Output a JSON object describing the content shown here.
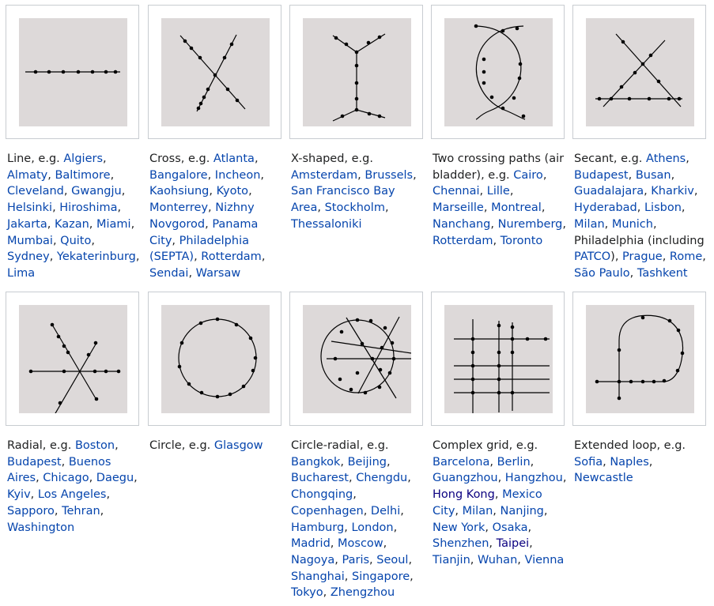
{
  "items": [
    {
      "label": "Line",
      "connector": ", e.g. ",
      "cities": [
        {
          "t": "Algiers"
        },
        {
          "t": "Almaty"
        },
        {
          "t": "Baltimore"
        },
        {
          "t": "Cleveland"
        },
        {
          "t": "Gwangju"
        },
        {
          "t": "Helsinki"
        },
        {
          "t": "Hiroshima"
        },
        {
          "t": "Jakarta"
        },
        {
          "t": "Kazan"
        },
        {
          "t": "Miami"
        },
        {
          "t": "Mumbai"
        },
        {
          "t": "Quito"
        },
        {
          "t": "Sydney"
        },
        {
          "t": "Yekaterinburg"
        },
        {
          "t": "Lima"
        }
      ]
    },
    {
      "label": "Cross",
      "connector": ", e.g. ",
      "cities": [
        {
          "t": "Atlanta"
        },
        {
          "t": "Bangalore"
        },
        {
          "t": "Incheon"
        },
        {
          "t": "Kaohsiung"
        },
        {
          "t": "Kyoto"
        },
        {
          "t": "Monterrey"
        },
        {
          "t": "Nizhny Novgorod"
        },
        {
          "t": "Panama City"
        },
        {
          "t": "Philadelphia (SEPTA)"
        },
        {
          "t": "Rotterdam"
        },
        {
          "t": "Sendai"
        },
        {
          "t": "Warsaw"
        }
      ]
    },
    {
      "label": "X-shaped",
      "connector": ", e.g. ",
      "cities": [
        {
          "t": "Amsterdam"
        },
        {
          "t": "Brussels"
        },
        {
          "t": "San Francisco Bay Area"
        },
        {
          "t": "Stockholm"
        },
        {
          "t": "Thessaloniki"
        }
      ]
    },
    {
      "label": "Two crossing paths (air bladder)",
      "connector": ", e.g. ",
      "cities": [
        {
          "t": "Cairo"
        },
        {
          "t": "Chennai"
        },
        {
          "t": "Lille"
        },
        {
          "t": "Marseille"
        },
        {
          "t": "Montreal"
        },
        {
          "t": "Nanchang"
        },
        {
          "t": "Nuremberg"
        },
        {
          "t": "Rotterdam"
        },
        {
          "t": "Toronto"
        }
      ]
    },
    {
      "label": "Secant",
      "connector": ", e.g. ",
      "cities": [
        {
          "t": "Athens"
        },
        {
          "t": "Budapest"
        },
        {
          "t": "Busan"
        },
        {
          "t": "Guadalajara"
        },
        {
          "t": "Kharkiv"
        },
        {
          "t": "Hyderabad"
        },
        {
          "t": "Lisbon"
        },
        {
          "t": "Milan"
        },
        {
          "t": "Munich"
        },
        {
          "t": "Philadelphia",
          "plain": true,
          "suffix": " (including "
        },
        {
          "t": "PATCO",
          "suffix": "), "
        },
        {
          "t": "Prague"
        },
        {
          "t": "Rome"
        },
        {
          "t": "São Paulo"
        },
        {
          "t": "Tashkent"
        }
      ]
    },
    {
      "label": "Radial",
      "connector": ", e.g. ",
      "cities": [
        {
          "t": "Boston"
        },
        {
          "t": "Budapest"
        },
        {
          "t": "Buenos Aires"
        },
        {
          "t": "Chicago"
        },
        {
          "t": "Daegu"
        },
        {
          "t": "Kyiv"
        },
        {
          "t": "Los Angeles"
        },
        {
          "t": "Sapporo"
        },
        {
          "t": "Tehran"
        },
        {
          "t": "Washington"
        }
      ]
    },
    {
      "label": "Circle",
      "connector": ", e.g. ",
      "cities": [
        {
          "t": "Glasgow"
        }
      ]
    },
    {
      "label": "Circle-radial",
      "connector": ", e.g. ",
      "cities": [
        {
          "t": "Bangkok"
        },
        {
          "t": "Beijing"
        },
        {
          "t": "Bucharest"
        },
        {
          "t": "Chengdu"
        },
        {
          "t": "Chongqing"
        },
        {
          "t": "Copenhagen"
        },
        {
          "t": "Delhi"
        },
        {
          "t": "Hamburg"
        },
        {
          "t": "London"
        },
        {
          "t": "Madrid"
        },
        {
          "t": "Moscow"
        },
        {
          "t": "Nagoya"
        },
        {
          "t": "Paris"
        },
        {
          "t": "Seoul"
        },
        {
          "t": "Shanghai"
        },
        {
          "t": "Singapore"
        },
        {
          "t": "Tokyo"
        },
        {
          "t": "Zhengzhou"
        }
      ]
    },
    {
      "label": "Complex grid",
      "connector": ", e.g. ",
      "cities": [
        {
          "t": "Barcelona"
        },
        {
          "t": "Berlin"
        },
        {
          "t": "Guangzhou"
        },
        {
          "t": "Hangzhou"
        },
        {
          "t": "Hong Kong",
          "visited": true
        },
        {
          "t": "Mexico City"
        },
        {
          "t": "Milan"
        },
        {
          "t": "Nanjing"
        },
        {
          "t": "New York"
        },
        {
          "t": "Osaka"
        },
        {
          "t": "Shenzhen"
        },
        {
          "t": "Taipei",
          "visited": true
        },
        {
          "t": "Tianjin"
        },
        {
          "t": "Wuhan"
        },
        {
          "t": "Vienna"
        }
      ]
    },
    {
      "label": "Extended loop",
      "connector": ", e.g. ",
      "cities": [
        {
          "t": "Sofia"
        },
        {
          "t": "Naples"
        },
        {
          "t": "Newcastle"
        }
      ]
    }
  ],
  "colors": {
    "link": "#0645ad",
    "visited": "#0b0080",
    "thumb_bg": "#ddd9d9",
    "border": "#c8ccd1"
  }
}
